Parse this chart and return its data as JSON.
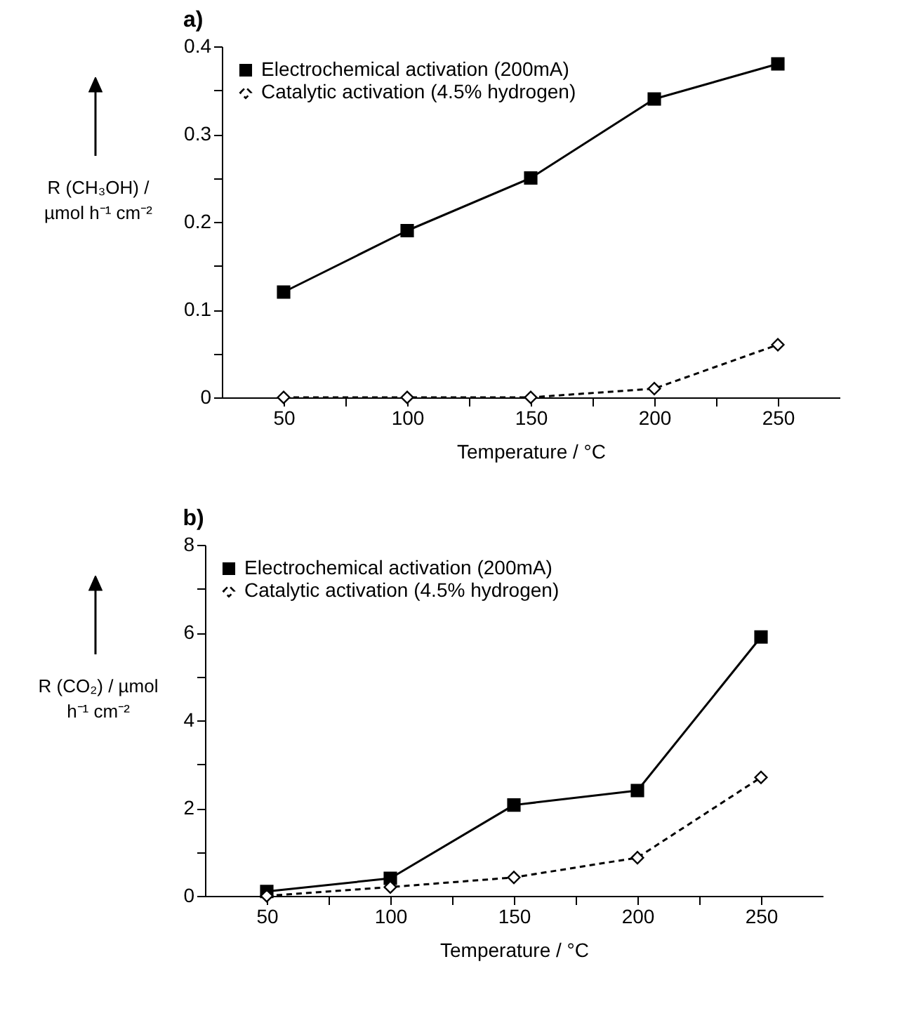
{
  "chart_data": [
    {
      "type": "line",
      "title": "a)",
      "xlabel": "Temperature / °C",
      "ylabel": "R (CH₃OH) / µmol h⁻¹ cm⁻²",
      "x": [
        50,
        100,
        150,
        200,
        250
      ],
      "series": [
        {
          "name": "Electrochemical activation (200mA)",
          "color": "#000000",
          "values": [
            0.12,
            0.19,
            0.25,
            0.34,
            0.38
          ],
          "marker": "square",
          "line_style": "solid"
        },
        {
          "name": "Catalytic activation (4.5% hydrogen)",
          "color": "#000000",
          "values": [
            0,
            0,
            0,
            0.01,
            0.06
          ],
          "marker": "diamond",
          "line_style": "dashed"
        }
      ],
      "xlim": [
        25,
        275
      ],
      "xticks": [
        50,
        {
          "value": 75,
          "label": null
        },
        100,
        {
          "value": 125,
          "label": null
        },
        150,
        {
          "value": 175,
          "label": null
        },
        200,
        {
          "value": 225,
          "label": null
        },
        250
      ],
      "ylim": [
        0,
        0.4
      ],
      "yticks": [
        0,
        {
          "value": 0.05,
          "label": null
        },
        0.1,
        {
          "value": 0.15,
          "label": null
        },
        0.2,
        {
          "value": 0.25,
          "label": null
        },
        0.3,
        {
          "value": 0.35,
          "label": null
        },
        0.4
      ],
      "legend": "top left",
      "grid": false
    },
    {
      "type": "line",
      "title": "b)",
      "xlabel": "Temperature / °C",
      "ylabel": "R (CO₂) / µmol h⁻¹ cm⁻²",
      "x": [
        50,
        100,
        150,
        200,
        250
      ],
      "series": [
        {
          "name": "Electrochemical activation (200mA)",
          "color": "#000000",
          "values": [
            0.1,
            0.4,
            2.07,
            2.4,
            5.9
          ],
          "marker": "square",
          "line_style": "solid"
        },
        {
          "name": "Catalytic activation (4.5% hydrogen)",
          "color": "#000000",
          "values": [
            0,
            0.2,
            0.42,
            0.87,
            2.7
          ],
          "marker": "diamond",
          "line_style": "dashed"
        }
      ],
      "xlim": [
        25,
        275
      ],
      "xticks": [
        50,
        {
          "value": 75,
          "label": null
        },
        100,
        {
          "value": 125,
          "label": null
        },
        150,
        {
          "value": 175,
          "label": null
        },
        200,
        {
          "value": 225,
          "label": null
        },
        250
      ],
      "ylim": [
        0,
        8
      ],
      "yticks": [
        0,
        {
          "value": 1,
          "label": null
        },
        2,
        {
          "value": 3,
          "label": null
        },
        4,
        {
          "value": 5,
          "label": null
        },
        6,
        {
          "value": 7,
          "label": null
        },
        8
      ],
      "legend": "top left",
      "grid": false
    }
  ]
}
